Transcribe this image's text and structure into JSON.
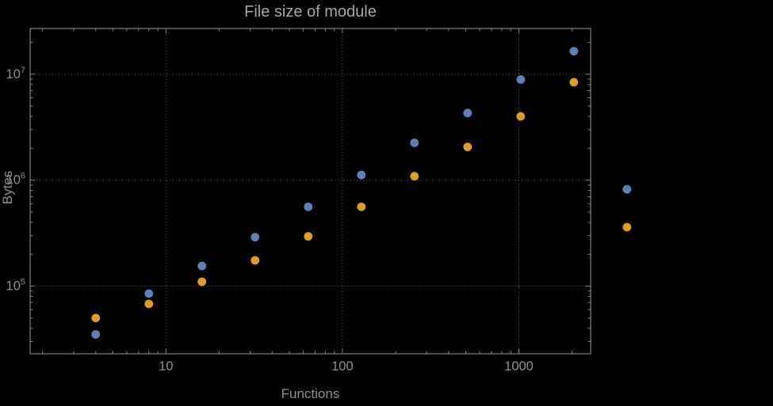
{
  "chart_data": {
    "type": "scatter",
    "title": "File size of module",
    "xlabel": "Functions",
    "ylabel": "Bytes",
    "x_scale": "log",
    "y_scale": "log",
    "xlim": [
      1.7,
      2550
    ],
    "ylim": [
      23000,
      27000000
    ],
    "grid": true,
    "legend": "none",
    "x": [
      4,
      8,
      16,
      32,
      64,
      128,
      256,
      512,
      1024,
      2048,
      4096
    ],
    "series": [
      {
        "name": "blue",
        "color": "#5e81b5",
        "values": [
          35000,
          85000,
          155000,
          290000,
          560000,
          1120000,
          2250000,
          4300000,
          8900000,
          16500000,
          820000
        ]
      },
      {
        "name": "orange",
        "color": "#e19c24",
        "values": [
          50000,
          68000,
          110000,
          175000,
          295000,
          560000,
          1090000,
          2060000,
          4000000,
          8400000,
          360000
        ]
      }
    ],
    "x_ticks": [
      {
        "value": 10,
        "label": "10"
      },
      {
        "value": 100,
        "label": "100"
      },
      {
        "value": 1000,
        "label": "1000"
      }
    ],
    "y_ticks": [
      {
        "value": 100000,
        "mantissa": "10",
        "exponent": "5"
      },
      {
        "value": 1000000,
        "mantissa": "10",
        "exponent": "6"
      },
      {
        "value": 10000000,
        "mantissa": "10",
        "exponent": "7"
      }
    ],
    "colors": {
      "background": "#000000",
      "frame": "#828282",
      "grid": "#5f5f5f",
      "tick_label": "#8f8f8f",
      "title": "#a6a6a6",
      "axis_label": "#8f8f8f",
      "series_blue": "#5e81b5",
      "series_orange": "#e19c24"
    }
  }
}
